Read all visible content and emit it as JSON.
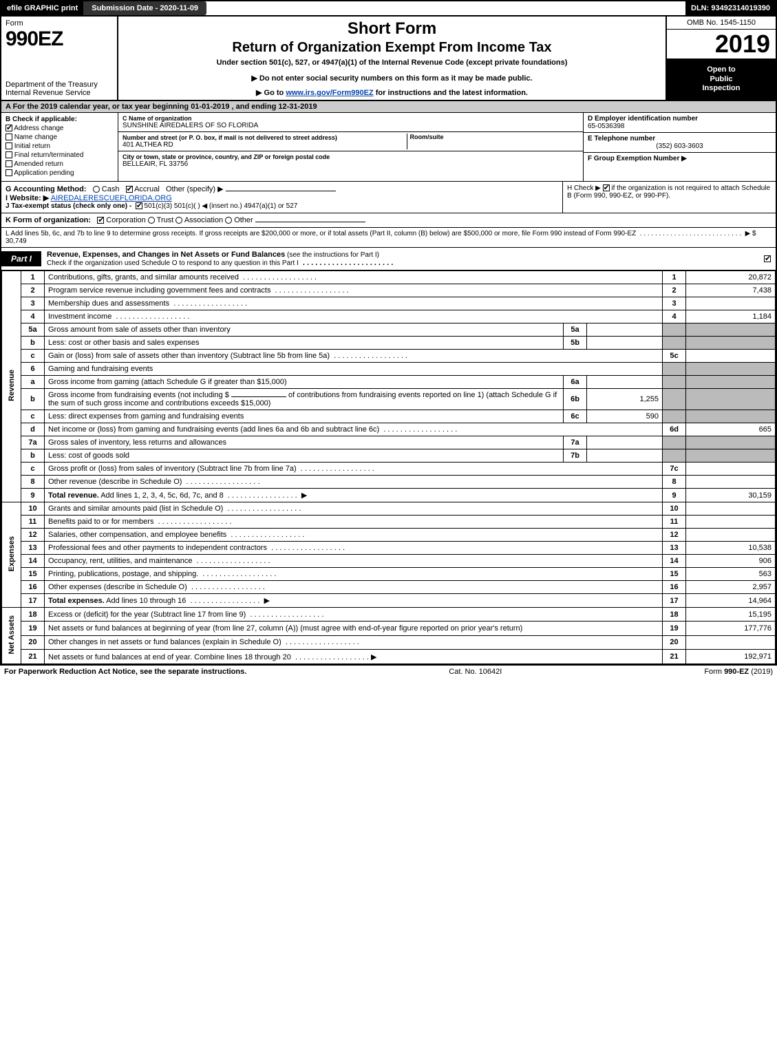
{
  "colors": {
    "black": "#000000",
    "white": "#ffffff",
    "shade": "#bbbbbb",
    "link": "#0645ad",
    "period_bg": "#cccccc"
  },
  "topbar": {
    "efile": "efile GRAPHIC print",
    "submission": "Submission Date - 2020-11-09",
    "dln": "DLN: 93492314019390"
  },
  "header": {
    "form_word": "Form",
    "form_number": "990EZ",
    "dept1": "Department of the Treasury",
    "dept2": "Internal Revenue Service",
    "title1": "Short Form",
    "title2": "Return of Organization Exempt From Income Tax",
    "subtitle": "Under section 501(c), 527, or 4947(a)(1) of the Internal Revenue Code (except private foundations)",
    "notice1": "▶ Do not enter social security numbers on this form as it may be made public.",
    "notice2_pre": "▶ Go to ",
    "notice2_link": "www.irs.gov/Form990EZ",
    "notice2_post": " for instructions and the latest information.",
    "omb": "OMB No. 1545-1150",
    "year": "2019",
    "insp1": "Open to",
    "insp2": "Public",
    "insp3": "Inspection"
  },
  "period": "A For the 2019 calendar year, or tax year beginning 01-01-2019 , and ending 12-31-2019",
  "boxB": {
    "label": "B  Check if applicable:",
    "items": [
      {
        "label": "Address change",
        "checked": true
      },
      {
        "label": "Name change",
        "checked": false
      },
      {
        "label": "Initial return",
        "checked": false
      },
      {
        "label": "Final return/terminated",
        "checked": false
      },
      {
        "label": "Amended return",
        "checked": false
      },
      {
        "label": "Application pending",
        "checked": false
      }
    ]
  },
  "boxC": {
    "c_label": "C Name of organization",
    "c_value": "SUNSHINE AIREDALERS OF SO FLORIDA",
    "street_label": "Number and street (or P. O. box, if mail is not delivered to street address)",
    "room_label": "Room/suite",
    "street_value": "401 ALTHEA RD",
    "city_label": "City or town, state or province, country, and ZIP or foreign postal code",
    "city_value": "BELLEAIR, FL  33756"
  },
  "boxD": {
    "d_label": "D Employer identification number",
    "d_value": "65-0536398",
    "e_label": "E Telephone number",
    "e_value": "(352) 603-3603",
    "f_label": "F Group Exemption Number  ▶",
    "f_value": ""
  },
  "acct": {
    "g_label": "G Accounting Method:",
    "g_cash": "Cash",
    "g_accrual": "Accrual",
    "g_other": "Other (specify) ▶",
    "i_label": "I Website: ▶",
    "i_value": "AIREDALERESCUEFLORIDA.ORG",
    "j_label": "J Tax-exempt status (check only one) -",
    "j_opts": "501(c)(3)    501(c)(  ) ◀ (insert no.)    4947(a)(1) or    527",
    "k_label": "K Form of organization:",
    "k_opts": [
      "Corporation",
      "Trust",
      "Association",
      "Other"
    ],
    "h_text1": "H  Check ▶",
    "h_text2": " if the organization is not required to attach Schedule B (Form 990, 990-EZ, or 990-PF)."
  },
  "lineL": {
    "text": "L Add lines 5b, 6c, and 7b to line 9 to determine gross receipts. If gross receipts are $200,000 or more, or if total assets (Part II, column (B) below) are $500,000 or more, file Form 990 instead of Form 990-EZ",
    "arrow": "▶ $",
    "value": "30,749"
  },
  "part1": {
    "tag": "Part I",
    "title": "Revenue, Expenses, and Changes in Net Assets or Fund Balances",
    "title_note": " (see the instructions for Part I)",
    "sub": "Check if the organization used Schedule O to respond to any question in this Part I",
    "sub_checked": true
  },
  "sections": {
    "revenue": "Revenue",
    "expenses": "Expenses",
    "netassets": "Net Assets"
  },
  "lines": [
    {
      "sec": "revenue",
      "n": "1",
      "d": "Contributions, gifts, grants, and similar amounts received",
      "col": "1",
      "val": "20,872"
    },
    {
      "sec": "revenue",
      "n": "2",
      "d": "Program service revenue including government fees and contracts",
      "col": "2",
      "val": "7,438"
    },
    {
      "sec": "revenue",
      "n": "3",
      "d": "Membership dues and assessments",
      "col": "3",
      "val": ""
    },
    {
      "sec": "revenue",
      "n": "4",
      "d": "Investment income",
      "col": "4",
      "val": "1,184"
    },
    {
      "sec": "revenue",
      "n": "5a",
      "d": "Gross amount from sale of assets other than inventory",
      "sub": "5a",
      "subval": "",
      "shade": true
    },
    {
      "sec": "revenue",
      "n": "b",
      "d": "Less: cost or other basis and sales expenses",
      "sub": "5b",
      "subval": "",
      "shade": true
    },
    {
      "sec": "revenue",
      "n": "c",
      "d": "Gain or (loss) from sale of assets other than inventory (Subtract line 5b from line 5a)",
      "col": "5c",
      "val": ""
    },
    {
      "sec": "revenue",
      "n": "6",
      "d": "Gaming and fundraising events",
      "shade": true,
      "noval": true
    },
    {
      "sec": "revenue",
      "n": "a",
      "d": "Gross income from gaming (attach Schedule G if greater than $15,000)",
      "sub": "6a",
      "subval": "",
      "shade": true
    },
    {
      "sec": "revenue",
      "n": "b",
      "d_pre": "Gross income from fundraising events (not including $ ",
      "d_post": " of contributions from fundraising events reported on line 1) (attach Schedule G if the sum of such gross income and contributions exceeds $15,000)",
      "sub": "6b",
      "subval": "1,255",
      "shade": true,
      "tall": true
    },
    {
      "sec": "revenue",
      "n": "c",
      "d": "Less: direct expenses from gaming and fundraising events",
      "sub": "6c",
      "subval": "590",
      "shade": true
    },
    {
      "sec": "revenue",
      "n": "d",
      "d": "Net income or (loss) from gaming and fundraising events (add lines 6a and 6b and subtract line 6c)",
      "col": "6d",
      "val": "665"
    },
    {
      "sec": "revenue",
      "n": "7a",
      "d": "Gross sales of inventory, less returns and allowances",
      "sub": "7a",
      "subval": "",
      "shade": true
    },
    {
      "sec": "revenue",
      "n": "b",
      "d": "Less: cost of goods sold",
      "sub": "7b",
      "subval": "",
      "shade": true
    },
    {
      "sec": "revenue",
      "n": "c",
      "d": "Gross profit or (loss) from sales of inventory (Subtract line 7b from line 7a)",
      "col": "7c",
      "val": ""
    },
    {
      "sec": "revenue",
      "n": "8",
      "d": "Other revenue (describe in Schedule O)",
      "col": "8",
      "val": ""
    },
    {
      "sec": "revenue",
      "n": "9",
      "d": "Total revenue. Add lines 1, 2, 3, 4, 5c, 6d, 7c, and 8",
      "col": "9",
      "val": "30,159",
      "bold": true,
      "arrow": true
    },
    {
      "sec": "expenses",
      "n": "10",
      "d": "Grants and similar amounts paid (list in Schedule O)",
      "col": "10",
      "val": ""
    },
    {
      "sec": "expenses",
      "n": "11",
      "d": "Benefits paid to or for members",
      "col": "11",
      "val": ""
    },
    {
      "sec": "expenses",
      "n": "12",
      "d": "Salaries, other compensation, and employee benefits",
      "col": "12",
      "val": ""
    },
    {
      "sec": "expenses",
      "n": "13",
      "d": "Professional fees and other payments to independent contractors",
      "col": "13",
      "val": "10,538"
    },
    {
      "sec": "expenses",
      "n": "14",
      "d": "Occupancy, rent, utilities, and maintenance",
      "col": "14",
      "val": "906"
    },
    {
      "sec": "expenses",
      "n": "15",
      "d": "Printing, publications, postage, and shipping.",
      "col": "15",
      "val": "563"
    },
    {
      "sec": "expenses",
      "n": "16",
      "d": "Other expenses (describe in Schedule O)",
      "col": "16",
      "val": "2,957"
    },
    {
      "sec": "expenses",
      "n": "17",
      "d": "Total expenses. Add lines 10 through 16",
      "col": "17",
      "val": "14,964",
      "bold": true,
      "arrow": true
    },
    {
      "sec": "netassets",
      "n": "18",
      "d": "Excess or (deficit) for the year (Subtract line 17 from line 9)",
      "col": "18",
      "val": "15,195"
    },
    {
      "sec": "netassets",
      "n": "19",
      "d": "Net assets or fund balances at beginning of year (from line 27, column (A)) (must agree with end-of-year figure reported on prior year's return)",
      "col": "19",
      "val": "177,776",
      "tall": true,
      "shade_top": true
    },
    {
      "sec": "netassets",
      "n": "20",
      "d": "Other changes in net assets or fund balances (explain in Schedule O)",
      "col": "20",
      "val": ""
    },
    {
      "sec": "netassets",
      "n": "21",
      "d": "Net assets or fund balances at end of year. Combine lines 18 through 20",
      "col": "21",
      "val": "192,971",
      "arrow": true
    }
  ],
  "footer": {
    "left": "For Paperwork Reduction Act Notice, see the separate instructions.",
    "mid": "Cat. No. 10642I",
    "right": "Form 990-EZ (2019)"
  }
}
